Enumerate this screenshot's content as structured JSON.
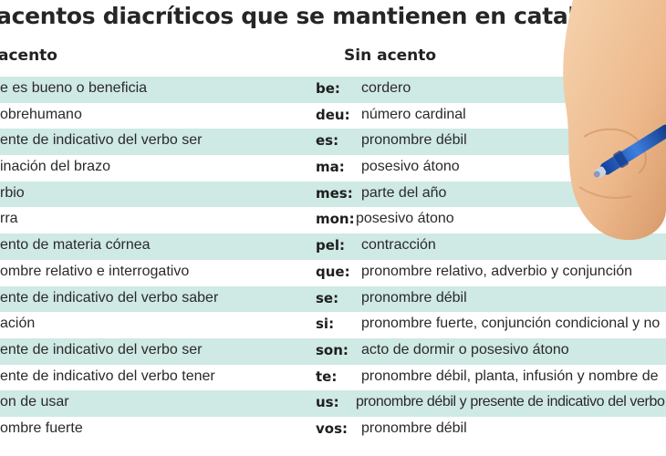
{
  "title": "acentos diacríticos que se mantienen en catalán",
  "headers": {
    "left": "acento",
    "right": "Sin acento"
  },
  "rows": [
    {
      "left": "e es bueno o beneficia",
      "word": "be:",
      "right": "cordero"
    },
    {
      "left": "obrehumano",
      "word": "deu:",
      "right": "número cardinal"
    },
    {
      "left": "ente de indicativo del verbo ser",
      "word": "es:",
      "right": "pronombre débil"
    },
    {
      "left": "inación del brazo",
      "word": "ma:",
      "right": "posesivo átono"
    },
    {
      "left": "rbio",
      "word": "mes:",
      "right": "parte del año"
    },
    {
      "left": "rra",
      "word": "mon:",
      "right": "posesivo átono"
    },
    {
      "left": "ento de materia córnea",
      "word": "pel:",
      "right": "contracción"
    },
    {
      "left": "ombre relativo e interrogativo",
      "word": "que:",
      "right": "pronombre relativo, adverbio y conjunción"
    },
    {
      "left": "ente de indicativo del verbo saber",
      "word": "se:",
      "right": "pronombre débil"
    },
    {
      "left": "ación",
      "word": "si:",
      "right": "pronombre fuerte, conjunción condicional y no"
    },
    {
      "left": "ente de indicativo del verbo ser",
      "word": "son:",
      "right": "acto de dormir o  posesivo átono"
    },
    {
      "left": "ente  de indicativo del verbo tener",
      "word": "te:",
      "right": "pronombre débil, planta, infusión y nombre de"
    },
    {
      "left": "on de usar",
      "word": "us:",
      "right": "pronombre débil y presente de indicativo del verbo"
    },
    {
      "left": "ombre fuerte",
      "word": "vos:",
      "right": "pronombre débil"
    }
  ],
  "colors": {
    "row_shade": "#cfe9e4",
    "pen_blue": "#1f57b8",
    "skin": "#f0c39a"
  },
  "illustration": "hand-holding-pen"
}
